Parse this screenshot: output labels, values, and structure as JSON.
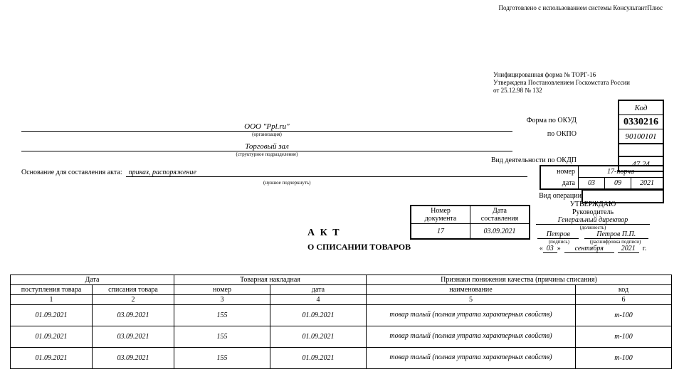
{
  "topnote": "Подготовлено с использованием системы КонсультантПлюс",
  "form": {
    "l1": "Унифицированная форма № ТОРГ-16",
    "l2": "Утверждена Постановлением Госкомстата России",
    "l3": "от 25.12.98 № 132"
  },
  "codes": {
    "hdr": "Код",
    "okud_lbl": "Форма по ОКУД",
    "okud": "0330216",
    "okpo_lbl": "по ОКПО",
    "okpo": "90100101",
    "okdp_lbl": "Вид деятельности по ОКДП",
    "okdp": "47.24",
    "num_lbl": "номер",
    "num": "17-порча",
    "date_lbl": "дата",
    "d": "03",
    "m": "09",
    "y": "2021",
    "oper_lbl": "Вид операции"
  },
  "org": {
    "name": "ООО \"Ppl.ru\"",
    "note": "(организация)"
  },
  "dept": {
    "name": "Торговый зал",
    "note": "(структурное подразделение)"
  },
  "basis": {
    "lbl": "Основание для составления акта:",
    "val": "приказ, распоряжение",
    "note": "(нужное подчеркнуть)"
  },
  "docbox": {
    "h1": "Номер документа",
    "h2": "Дата составления",
    "n": "17",
    "d": "03.09.2021"
  },
  "akt": "А К Т",
  "akt2": "О СПИСАНИИ ТОВАРОВ",
  "approve": {
    "t": "УТВЕРЖДАЮ",
    "r": "Руководитель",
    "pos": "Генеральный директор",
    "posn": "(должность)",
    "sig": "Петров",
    "sign": "(подпись)",
    "dec": "Петров П.П.",
    "decn": "(расшифровка подписи)",
    "dd": "03",
    "mm": "сентября",
    "yy": "2021",
    "g": "г.",
    "q1": "«",
    "q2": "»"
  },
  "table": {
    "h_date": "Дата",
    "h_tn": "Товарная накладная",
    "h_pr": "Признаки понижения качества (причины списания)",
    "h_in": "поступления товара",
    "h_out": "списания товара",
    "h_num": "номер",
    "h_d": "дата",
    "h_name": "наименование",
    "h_code": "код",
    "c1": "1",
    "c2": "2",
    "c3": "3",
    "c4": "4",
    "c5": "5",
    "c6": "6",
    "rows": [
      {
        "a": "01.09.2021",
        "b": "03.09.2021",
        "c": "155",
        "d": "01.09.2021",
        "e": "товар талый (полная утрата характерных свойств)",
        "f": "т-100"
      },
      {
        "a": "01.09.2021",
        "b": "03.09.2021",
        "c": "155",
        "d": "01.09.2021",
        "e": "товар талый (полная утрата характерных свойств)",
        "f": "т-100"
      },
      {
        "a": "01.09.2021",
        "b": "03.09.2021",
        "c": "155",
        "d": "01.09.2021",
        "e": "товар талый (полная утрата характерных свойств)",
        "f": "т-100"
      }
    ]
  }
}
